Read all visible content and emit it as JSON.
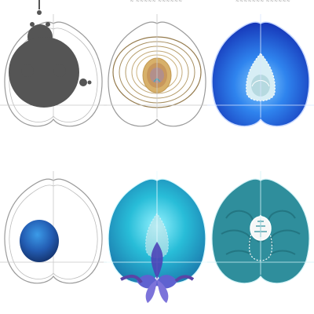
{
  "captions": {
    "middle_top": "~ ~~~~~ ~~~~~~",
    "right_top": "~~~~~~~ ~~~~~~"
  },
  "panels": [
    {
      "id": "mandelbrot-heart",
      "fill": "#555555",
      "description_icon": "mandelbrot-set-icon"
    },
    {
      "id": "golden-spiral-heart",
      "fill": "#c89b4a",
      "description_icon": "golden-swirl-icon"
    },
    {
      "id": "blue-ice-heart",
      "fill": "#2f6ad8",
      "description_icon": "ice-crystal-icon"
    },
    {
      "id": "blue-egg-heart",
      "fill": "#2f5fb5",
      "description_icon": "blue-egg-icon"
    },
    {
      "id": "cyan-flower-heart",
      "fill": "#27b7d6",
      "description_icon": "iris-flower-icon"
    },
    {
      "id": "teal-brain-heart",
      "fill": "#2d8f9e",
      "description_icon": "brain-icon"
    }
  ],
  "colors": {
    "outline": "#9a9a9a",
    "guide": "#c8c8c8",
    "gray": "#555555",
    "gold": "#b88b3e",
    "blue": "#2f6ad8",
    "cyan": "#28bdd8",
    "teal": "#2f8e9c",
    "flower": "#6a6bd1"
  }
}
